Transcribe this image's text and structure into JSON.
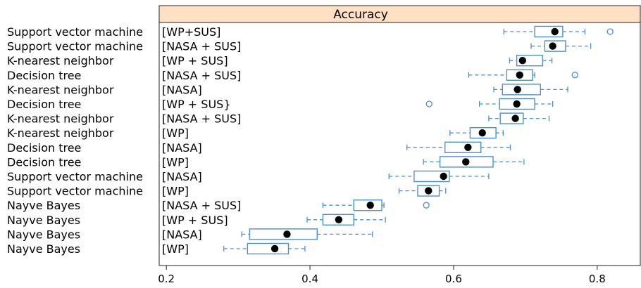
{
  "chart_data": {
    "type": "boxplot",
    "strip_title": "Accuracy",
    "xlim": [
      0.19,
      0.86
    ],
    "x_ticks": [
      0.2,
      0.4,
      0.6,
      0.8
    ],
    "x_tick_labels": [
      "0.2",
      "0.4",
      "0.6",
      "0.8"
    ],
    "colors": {
      "box": "#4b8fd6",
      "median": "#000000",
      "strip": "#ffe0c2",
      "outlier": "#4b8fd6"
    },
    "rows": [
      {
        "model": "Support vector machine",
        "features": "[WP+SUS]",
        "min": 0.67,
        "q1": 0.713,
        "median": 0.741,
        "q3": 0.752,
        "max": 0.783,
        "outliers": [
          0.818
        ]
      },
      {
        "model": "Support vector machine",
        "features": "[NASA + SUS]",
        "min": 0.708,
        "q1": 0.727,
        "median": 0.738,
        "q3": 0.756,
        "max": 0.791,
        "outliers": []
      },
      {
        "model": "K-nearest neighbor",
        "features": "[WP + SUS]",
        "min": 0.678,
        "q1": 0.688,
        "median": 0.696,
        "q3": 0.724,
        "max": 0.737,
        "outliers": []
      },
      {
        "model": "Decision tree",
        "features": "[NASA + SUS]",
        "min": 0.621,
        "q1": 0.674,
        "median": 0.692,
        "q3": 0.71,
        "max": 0.713,
        "outliers": [
          0.769
        ]
      },
      {
        "model": "K-nearest neighbor",
        "features": "[NASA]",
        "min": 0.656,
        "q1": 0.668,
        "median": 0.689,
        "q3": 0.721,
        "max": 0.759,
        "outliers": []
      },
      {
        "model": "Decision tree",
        "features": "[WP + SUS}",
        "min": 0.636,
        "q1": 0.664,
        "median": 0.688,
        "q3": 0.713,
        "max": 0.738,
        "outliers": [
          0.566
        ]
      },
      {
        "model": "K-nearest neighbor",
        "features": "[NASA + SUS]",
        "min": 0.649,
        "q1": 0.665,
        "median": 0.686,
        "q3": 0.697,
        "max": 0.733,
        "outliers": []
      },
      {
        "model": "K-nearest neighbor",
        "features": "[WP]",
        "min": 0.595,
        "q1": 0.623,
        "median": 0.64,
        "q3": 0.659,
        "max": 0.669,
        "outliers": []
      },
      {
        "model": "Decision tree",
        "features": "[NASA]",
        "min": 0.535,
        "q1": 0.588,
        "median": 0.62,
        "q3": 0.638,
        "max": 0.679,
        "outliers": []
      },
      {
        "model": "Decision tree",
        "features": "[WP]",
        "min": 0.558,
        "q1": 0.581,
        "median": 0.617,
        "q3": 0.655,
        "max": 0.698,
        "outliers": []
      },
      {
        "model": "Support vector machine",
        "features": "[NASA]",
        "min": 0.51,
        "q1": 0.545,
        "median": 0.586,
        "q3": 0.594,
        "max": 0.649,
        "outliers": []
      },
      {
        "model": "Support vector machine",
        "features": "[WP]",
        "min": 0.524,
        "q1": 0.55,
        "median": 0.565,
        "q3": 0.58,
        "max": 0.589,
        "outliers": []
      },
      {
        "model": "Nayve Bayes",
        "features": "[NASA + SUS]",
        "min": 0.418,
        "q1": 0.461,
        "median": 0.484,
        "q3": 0.5,
        "max": 0.503,
        "outliers": [
          0.562
        ]
      },
      {
        "model": "Nayve Bayes",
        "features": "[WP + SUS]",
        "min": 0.396,
        "q1": 0.418,
        "median": 0.44,
        "q3": 0.461,
        "max": 0.505,
        "outliers": []
      },
      {
        "model": "Nayve Bayes",
        "features": "[NASA]",
        "min": 0.305,
        "q1": 0.316,
        "median": 0.368,
        "q3": 0.41,
        "max": 0.487,
        "outliers": []
      },
      {
        "model": "Nayve Bayes",
        "features": "[WP]",
        "min": 0.28,
        "q1": 0.313,
        "median": 0.351,
        "q3": 0.37,
        "max": 0.393,
        "outliers": []
      }
    ]
  }
}
